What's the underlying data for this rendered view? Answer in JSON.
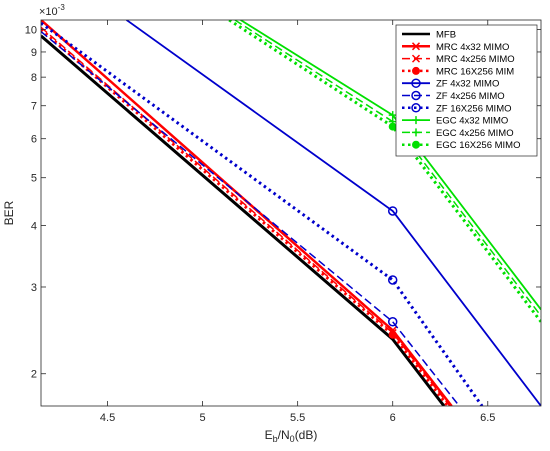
{
  "chart_data": {
    "type": "line",
    "xlabel": "E_b/N_0(dB)",
    "ylabel": "BER",
    "exponent_label": "×10",
    "exponent_power": "-3",
    "xlim": [
      4.15,
      6.78
    ],
    "ylim": [
      0.00172,
      0.01045
    ],
    "yscale": "log",
    "x_ticks": [
      "4.5",
      "5",
      "5.5",
      "6",
      "6.5"
    ],
    "x_tick_values": [
      4.5,
      5,
      5.5,
      6,
      6.5
    ],
    "y_ticks": [
      "2",
      "3",
      "4",
      "5",
      "6",
      "7",
      "8",
      "9",
      "10"
    ],
    "y_tick_values": [
      0.002,
      0.003,
      0.004,
      0.005,
      0.006,
      0.007,
      0.008,
      0.009,
      0.01
    ],
    "grid": false,
    "legend_position": "top-right",
    "series": [
      {
        "name": "MFB",
        "color": "#000000",
        "dash": "solid",
        "width": 3,
        "marker": "none",
        "x": [
          4.15,
          6.0,
          6.27
        ],
        "y": [
          0.0097,
          0.00235,
          0.00172
        ]
      },
      {
        "name": "MRC 4x32 MIMO",
        "color": "#ff0000",
        "dash": "solid",
        "width": 2.5,
        "marker": "x",
        "x": [
          4.15,
          6.0,
          6.31
        ],
        "y": [
          0.01045,
          0.00245,
          0.00172
        ]
      },
      {
        "name": "MRC 4x256 MIMO",
        "color": "#ff0000",
        "dash": "dash",
        "width": 1.5,
        "marker": "x",
        "x": [
          4.15,
          6.0,
          6.3
        ],
        "y": [
          0.0101,
          0.00242,
          0.00172
        ]
      },
      {
        "name": "MRC 16X256 MIM",
        "color": "#ff0000",
        "dash": "dot",
        "width": 3,
        "marker": "dot",
        "x": [
          4.15,
          6.0,
          6.29
        ],
        "y": [
          0.01,
          0.0024,
          0.00172
        ]
      },
      {
        "name": "ZF 4x32 MIMO",
        "color": "#0000cc",
        "dash": "solid",
        "width": 1.8,
        "marker": "circle",
        "x": [
          4.6,
          6.0,
          6.78
        ],
        "y": [
          0.01045,
          0.00428,
          0.00172
        ]
      },
      {
        "name": "ZF 4x256 MIMO",
        "color": "#0000cc",
        "dash": "dash",
        "width": 1.5,
        "marker": "circle",
        "x": [
          4.15,
          6.0,
          6.35
        ],
        "y": [
          0.0099,
          0.00255,
          0.00172
        ]
      },
      {
        "name": "ZF 16X256 MIMO",
        "color": "#0000cc",
        "dash": "dot",
        "width": 3,
        "marker": "circle",
        "x": [
          4.15,
          6.0,
          6.47
        ],
        "y": [
          0.0103,
          0.0031,
          0.00172
        ]
      },
      {
        "name": "EGC 4x32 MIMO",
        "color": "#00e000",
        "dash": "solid",
        "width": 1.8,
        "marker": "plus",
        "x": [
          5.2,
          6.0,
          6.78
        ],
        "y": [
          0.01045,
          0.0067,
          0.0027
        ]
      },
      {
        "name": "EGC 4x256 MIMO",
        "color": "#00e000",
        "dash": "dash",
        "width": 1.5,
        "marker": "plus",
        "x": [
          5.17,
          6.0,
          6.78
        ],
        "y": [
          0.01045,
          0.0065,
          0.00262
        ]
      },
      {
        "name": "EGC 16X256 MIMO",
        "color": "#00e000",
        "dash": "dot",
        "width": 3,
        "marker": "dot",
        "x": [
          5.14,
          6.0,
          6.78
        ],
        "y": [
          0.01045,
          0.00635,
          0.00255
        ]
      }
    ]
  }
}
